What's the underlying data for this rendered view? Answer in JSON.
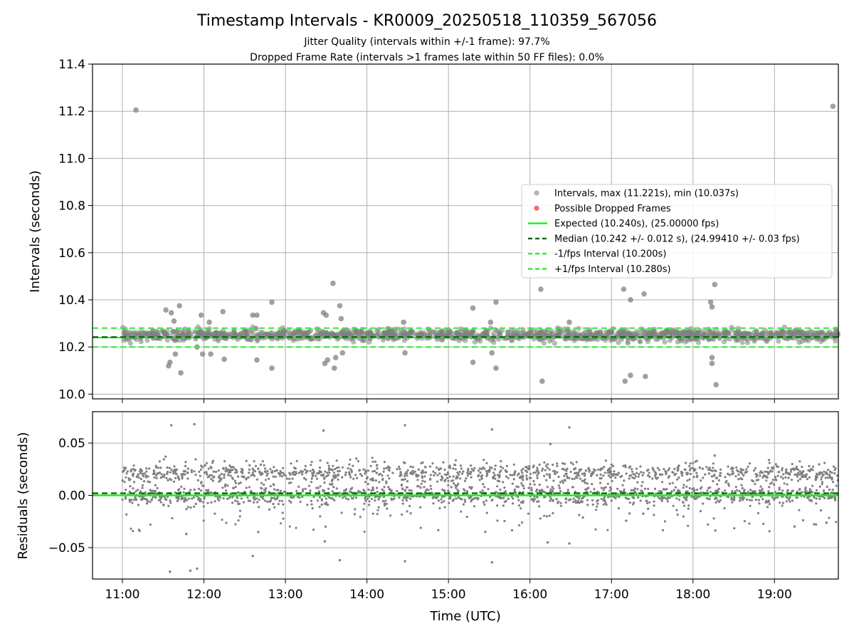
{
  "title": "Timestamp Intervals - KR0009_20250518_110359_567056",
  "subtitle_lines": [
    "Jitter Quality (intervals within +/-1 frame): 97.7%",
    "Dropped Frame Rate (intervals >1 frames late within 50 FF files): 0.0%"
  ],
  "colors": {
    "points": "#808080",
    "dropped": "#ff4040",
    "expected": "#1aee1a",
    "median": "#116611",
    "interval_band": "#33ee33",
    "grid": "#b0b0b0"
  },
  "chart_data": [
    {
      "type": "scatter",
      "ylabel": "Intervals (seconds)",
      "xlim": [
        "10:38",
        "19:47"
      ],
      "ylim": [
        9.98,
        11.4
      ],
      "yticks": [
        "10.0",
        "10.2",
        "10.4",
        "10.6",
        "10.8",
        "11.0",
        "11.2",
        "11.4"
      ],
      "grid": true,
      "legend_position": "center-right",
      "series": [
        {
          "name": "Intervals, max (11.221s), min (10.037s)",
          "marker": "circle",
          "note_dense_band": "dense cluster of points between 10.22 and 10.28 s from 11:00 to 19:47",
          "outliers": [
            {
              "t": "11:10",
              "v": 11.205
            },
            {
              "t": "11:32",
              "v": 10.357
            },
            {
              "t": "11:34",
              "v": 10.12
            },
            {
              "t": "11:35",
              "v": 10.135
            },
            {
              "t": "11:36",
              "v": 10.345
            },
            {
              "t": "11:38",
              "v": 10.31
            },
            {
              "t": "11:39",
              "v": 10.17
            },
            {
              "t": "11:42",
              "v": 10.375
            },
            {
              "t": "11:43",
              "v": 10.09
            },
            {
              "t": "11:55",
              "v": 10.2
            },
            {
              "t": "11:58",
              "v": 10.335
            },
            {
              "t": "11:59",
              "v": 10.17
            },
            {
              "t": "12:04",
              "v": 10.305
            },
            {
              "t": "12:05",
              "v": 10.17
            },
            {
              "t": "12:14",
              "v": 10.35
            },
            {
              "t": "12:15",
              "v": 10.148
            },
            {
              "t": "12:36",
              "v": 10.335
            },
            {
              "t": "12:39",
              "v": 10.335
            },
            {
              "t": "12:39",
              "v": 10.145
            },
            {
              "t": "12:50",
              "v": 10.39
            },
            {
              "t": "12:50",
              "v": 10.11
            },
            {
              "t": "13:28",
              "v": 10.345
            },
            {
              "t": "13:29",
              "v": 10.13
            },
            {
              "t": "13:30",
              "v": 10.335
            },
            {
              "t": "13:31",
              "v": 10.145
            },
            {
              "t": "13:35",
              "v": 10.47
            },
            {
              "t": "13:36",
              "v": 10.11
            },
            {
              "t": "13:37",
              "v": 10.155
            },
            {
              "t": "13:40",
              "v": 10.375
            },
            {
              "t": "13:41",
              "v": 10.32
            },
            {
              "t": "13:42",
              "v": 10.175
            },
            {
              "t": "14:27",
              "v": 10.305
            },
            {
              "t": "14:28",
              "v": 10.175
            },
            {
              "t": "15:18",
              "v": 10.365
            },
            {
              "t": "15:18",
              "v": 10.135
            },
            {
              "t": "15:31",
              "v": 10.305
            },
            {
              "t": "15:32",
              "v": 10.175
            },
            {
              "t": "15:35",
              "v": 10.39
            },
            {
              "t": "15:35",
              "v": 10.11
            },
            {
              "t": "16:08",
              "v": 10.445
            },
            {
              "t": "16:09",
              "v": 10.055
            },
            {
              "t": "16:29",
              "v": 10.305
            },
            {
              "t": "17:09",
              "v": 10.445
            },
            {
              "t": "17:10",
              "v": 10.055
            },
            {
              "t": "17:14",
              "v": 10.4
            },
            {
              "t": "17:14",
              "v": 10.08
            },
            {
              "t": "17:24",
              "v": 10.425
            },
            {
              "t": "17:25",
              "v": 10.075
            },
            {
              "t": "18:13",
              "v": 10.39
            },
            {
              "t": "18:14",
              "v": 10.37
            },
            {
              "t": "18:14",
              "v": 10.155
            },
            {
              "t": "18:14",
              "v": 10.13
            },
            {
              "t": "18:16",
              "v": 10.465
            },
            {
              "t": "18:17",
              "v": 10.04
            },
            {
              "t": "19:43",
              "v": 11.221
            }
          ]
        },
        {
          "name": "Possible Dropped Frames",
          "marker": "circle",
          "points": []
        }
      ],
      "hlines": [
        {
          "name": "Expected (10.240s), (25.00000 fps)",
          "y": 10.24,
          "style": "solid"
        },
        {
          "name": "Median (10.242 +/- 0.012 s), (24.99410 +/- 0.03 fps)",
          "y": 10.242,
          "style": "dashed"
        },
        {
          "name": "-1/fps Interval (10.200s)",
          "y": 10.2,
          "style": "dashed"
        },
        {
          "name": "+1/fps Interval (10.280s)",
          "y": 10.28,
          "style": "dashed"
        }
      ]
    },
    {
      "type": "scatter",
      "xlabel": "Time (UTC)",
      "ylabel": "Residuals (seconds)",
      "xlim": [
        "10:38",
        "19:47"
      ],
      "ylim": [
        -0.08,
        0.08
      ],
      "yticks": [
        "−0.05",
        "0.00",
        "0.05"
      ],
      "xticks": [
        "11:00",
        "12:00",
        "13:00",
        "14:00",
        "15:00",
        "16:00",
        "17:00",
        "18:00",
        "19:00"
      ],
      "grid": true,
      "note_dense_bands": "two dense bands of residuals at about 0.00 and 0.02 s from 11:00 to 19:47",
      "outliers": [
        {
          "t": "11:36",
          "v": 0.067
        },
        {
          "t": "11:53",
          "v": 0.068
        },
        {
          "t": "11:35",
          "v": -0.073
        },
        {
          "t": "11:50",
          "v": -0.072
        },
        {
          "t": "11:55",
          "v": -0.07
        },
        {
          "t": "12:36",
          "v": -0.058
        },
        {
          "t": "13:28",
          "v": 0.062
        },
        {
          "t": "13:29",
          "v": -0.044
        },
        {
          "t": "13:40",
          "v": -0.062
        },
        {
          "t": "14:28",
          "v": 0.067
        },
        {
          "t": "14:28",
          "v": -0.063
        },
        {
          "t": "15:32",
          "v": 0.063
        },
        {
          "t": "15:32",
          "v": -0.064
        },
        {
          "t": "16:29",
          "v": 0.065
        },
        {
          "t": "16:29",
          "v": -0.046
        },
        {
          "t": "16:15",
          "v": 0.049
        },
        {
          "t": "16:13",
          "v": -0.045
        },
        {
          "t": "18:16",
          "v": 0.038
        },
        {
          "t": "12:40",
          "v": -0.035
        },
        {
          "t": "11:47",
          "v": -0.037
        }
      ],
      "hlines": [
        {
          "y": 0.0,
          "style": "solid"
        },
        {
          "y": 0.002,
          "style": "dashed"
        }
      ]
    }
  ]
}
